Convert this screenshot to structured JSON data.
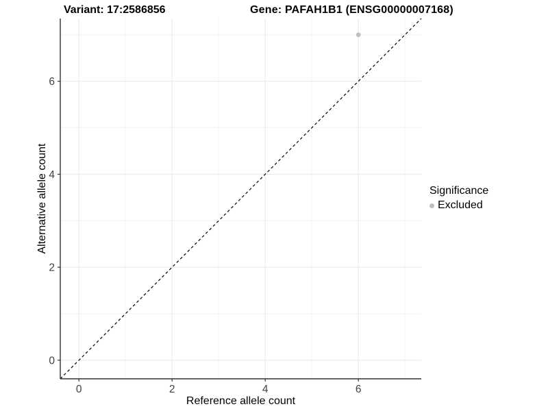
{
  "chart_data": {
    "type": "scatter",
    "title_left": "Variant: 17:2586856",
    "title_right": "Gene: PAFAH1B1 (ENSG00000007168)",
    "xlabel": "Reference allele count",
    "ylabel": "Alternative allele count",
    "x_ticks": [
      0,
      2,
      4,
      6
    ],
    "y_ticks": [
      0,
      2,
      4,
      6
    ],
    "x_minor_ticks": [
      1,
      3,
      5,
      7
    ],
    "y_minor_ticks": [
      1,
      3,
      5,
      7
    ],
    "xlim": [
      -0.4,
      7.35
    ],
    "ylim": [
      -0.4,
      7.35
    ],
    "grid": "major+minor",
    "points": [
      {
        "x": 6,
        "y": 7,
        "significance": "Excluded",
        "color": "#c0c0c0",
        "radius": 3.4
      }
    ],
    "identity_line": {
      "slope": 1,
      "intercept": 0,
      "style": "dashed",
      "color": "#000000"
    },
    "legend": {
      "title": "Significance",
      "position": "right",
      "entries": [
        {
          "label": "Excluded",
          "color": "#bdbdbd",
          "marker": "point"
        }
      ]
    },
    "style_colors": {
      "grid_major": "#e7e7e7",
      "grid_minor": "#f4f4f4",
      "axis_line": "#333333",
      "tick_mark": "#333333",
      "tick_label": "#404040",
      "axis_title": "#000000"
    }
  }
}
